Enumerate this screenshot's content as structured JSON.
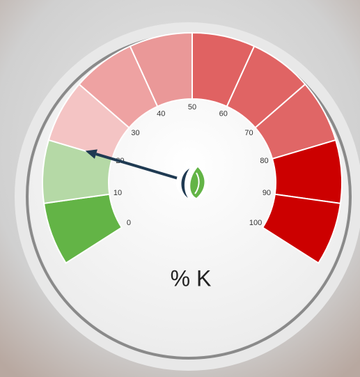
{
  "chart_data": {
    "type": "gauge",
    "title": "% K",
    "value": 20,
    "ylim": [
      0,
      100
    ],
    "yticks": [
      0,
      10,
      20,
      30,
      40,
      50,
      60,
      70,
      80,
      90,
      100
    ],
    "bands": [
      {
        "from": 0,
        "to": 10,
        "color": "#63b446"
      },
      {
        "from": 10,
        "to": 20,
        "color": "#b5d9a6"
      },
      {
        "from": 20,
        "to": 30,
        "color": "#f4c4c4"
      },
      {
        "from": 30,
        "to": 40,
        "color": "#eea2a2"
      },
      {
        "from": 40,
        "to": 50,
        "color": "#ea9898"
      },
      {
        "from": 50,
        "to": 60,
        "color": "#e06262"
      },
      {
        "from": 60,
        "to": 70,
        "color": "#e06464"
      },
      {
        "from": 70,
        "to": 80,
        "color": "#e06666"
      },
      {
        "from": 80,
        "to": 90,
        "color": "#cc0000"
      },
      {
        "from": 90,
        "to": 100,
        "color": "#cc0000"
      }
    ],
    "needle_color": "#1f3a52"
  }
}
